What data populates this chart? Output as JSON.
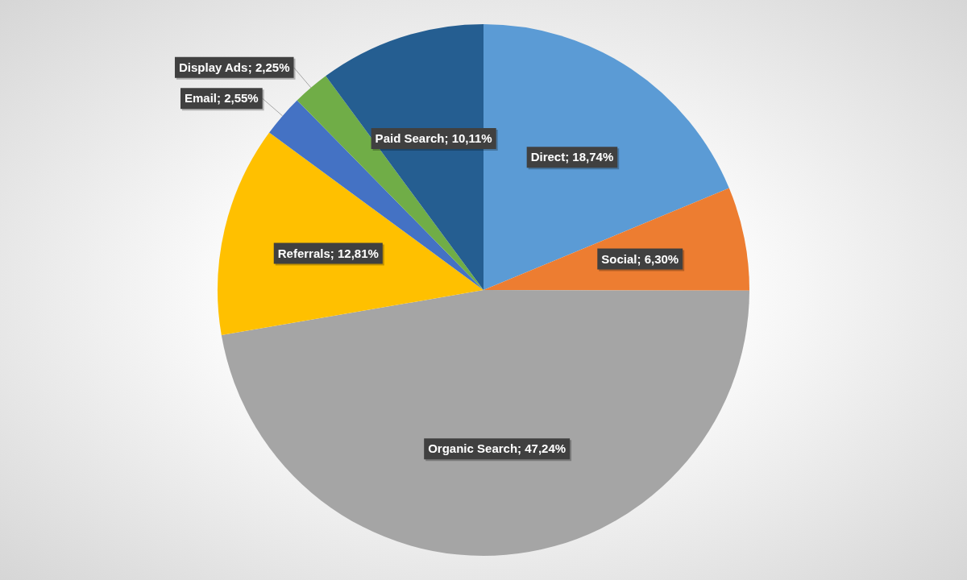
{
  "chart_data": {
    "type": "pie",
    "categories": [
      "Direct",
      "Social",
      "Organic Search",
      "Referrals",
      "Email",
      "Display Ads",
      "Paid Search"
    ],
    "values": [
      18.74,
      6.3,
      47.24,
      12.81,
      2.55,
      2.25,
      10.11
    ],
    "colors": [
      "#5b9bd5",
      "#ed7d31",
      "#a5a5a5",
      "#ffc000",
      "#4472c4",
      "#70ad47",
      "#255e91"
    ],
    "value_labels": [
      "; 18,74%",
      "; 6,30%",
      "; 47,24%",
      "; 12,81%",
      "; 2,55%",
      "; 2,25%",
      "; 10,11%"
    ],
    "legend": false
  }
}
